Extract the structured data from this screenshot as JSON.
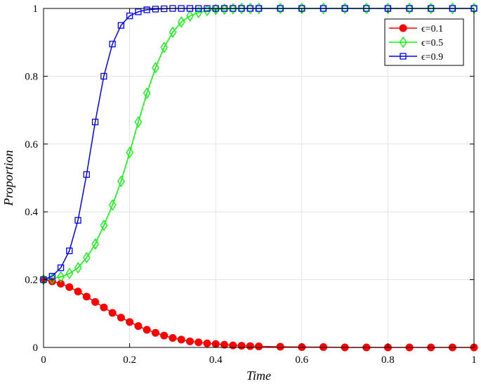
{
  "chart_data": {
    "type": "line",
    "xlabel": "Time",
    "ylabel": "Proportion",
    "xlim": [
      0,
      1
    ],
    "ylim": [
      0,
      1
    ],
    "xticks": [
      "0",
      "0.2",
      "0.4",
      "0.6",
      "0.8",
      "1"
    ],
    "yticks": [
      "0",
      "0.2",
      "0.4",
      "0.6",
      "0.8",
      "1"
    ],
    "grid": true,
    "legend_position": "top-right",
    "series": [
      {
        "name": "ϵ=0.1",
        "color": "#ff0000",
        "marker": "circle-filled",
        "x": [
          0.0,
          0.02,
          0.04,
          0.06,
          0.08,
          0.1,
          0.12,
          0.14,
          0.16,
          0.18,
          0.2,
          0.22,
          0.24,
          0.26,
          0.28,
          0.3,
          0.32,
          0.34,
          0.36,
          0.38,
          0.4,
          0.42,
          0.44,
          0.46,
          0.48,
          0.5,
          0.55,
          0.6,
          0.65,
          0.7,
          0.75,
          0.8,
          0.85,
          0.9,
          0.95,
          1.0
        ],
        "y": [
          0.2,
          0.195,
          0.188,
          0.178,
          0.165,
          0.15,
          0.134,
          0.118,
          0.102,
          0.088,
          0.075,
          0.063,
          0.052,
          0.043,
          0.035,
          0.028,
          0.023,
          0.018,
          0.015,
          0.012,
          0.01,
          0.008,
          0.006,
          0.005,
          0.004,
          0.003,
          0.002,
          0.001,
          0.001,
          0.0,
          0.0,
          0.0,
          0.0,
          0.0,
          0.0,
          0.0
        ]
      },
      {
        "name": "ϵ=0.5",
        "color": "#00ff00",
        "marker": "diamond-open",
        "x": [
          0.0,
          0.02,
          0.04,
          0.06,
          0.08,
          0.1,
          0.12,
          0.14,
          0.16,
          0.18,
          0.2,
          0.22,
          0.24,
          0.26,
          0.28,
          0.3,
          0.32,
          0.34,
          0.36,
          0.38,
          0.4,
          0.42,
          0.44,
          0.46,
          0.48,
          0.5,
          0.55,
          0.6,
          0.65,
          0.7,
          0.75,
          0.8,
          0.85,
          0.9,
          0.95,
          1.0
        ],
        "y": [
          0.2,
          0.203,
          0.208,
          0.218,
          0.235,
          0.265,
          0.305,
          0.36,
          0.42,
          0.49,
          0.575,
          0.665,
          0.75,
          0.825,
          0.885,
          0.93,
          0.96,
          0.978,
          0.988,
          0.994,
          0.997,
          0.998,
          0.999,
          1.0,
          1.0,
          1.0,
          1.0,
          1.0,
          1.0,
          1.0,
          1.0,
          1.0,
          1.0,
          1.0,
          1.0,
          1.0
        ]
      },
      {
        "name": "ϵ=0.9",
        "color": "#0000ff",
        "marker": "square-open",
        "x": [
          0.0,
          0.02,
          0.04,
          0.06,
          0.08,
          0.1,
          0.12,
          0.14,
          0.16,
          0.18,
          0.2,
          0.22,
          0.24,
          0.26,
          0.28,
          0.3,
          0.32,
          0.34,
          0.36,
          0.38,
          0.4,
          0.42,
          0.44,
          0.46,
          0.48,
          0.5,
          0.55,
          0.6,
          0.65,
          0.7,
          0.75,
          0.8,
          0.85,
          0.9,
          0.95,
          1.0
        ],
        "y": [
          0.2,
          0.21,
          0.235,
          0.285,
          0.375,
          0.51,
          0.665,
          0.8,
          0.895,
          0.95,
          0.978,
          0.99,
          0.996,
          0.998,
          0.999,
          1.0,
          1.0,
          1.0,
          1.0,
          1.0,
          1.0,
          1.0,
          1.0,
          1.0,
          1.0,
          1.0,
          1.0,
          1.0,
          1.0,
          1.0,
          1.0,
          1.0,
          1.0,
          1.0,
          1.0,
          1.0
        ]
      }
    ]
  }
}
